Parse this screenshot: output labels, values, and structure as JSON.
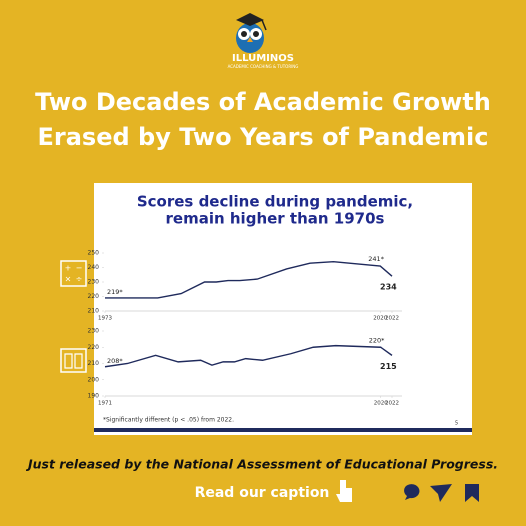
{
  "brand": {
    "name": "ILLUMINOS",
    "tagline": "ACADEMIC COACHING & TUTORING"
  },
  "headline": [
    "Two Decades of Academic Growth",
    "Erased by Two Years of Pandemic"
  ],
  "slide_title": [
    "Scores decline during pandemic,",
    "remain higher than 1970s"
  ],
  "chart_data": [
    {
      "type": "line",
      "color": "#1f2a5c",
      "x": [
        1973,
        1978,
        1982,
        1986,
        1990,
        1992,
        1994,
        1996,
        1999,
        2004,
        2008,
        2012,
        2020,
        2022
      ],
      "values": [
        219,
        219,
        219,
        222,
        230,
        230,
        231,
        231,
        232,
        239,
        243,
        244,
        241,
        234
      ],
      "value_labels": [
        "219*",
        null,
        null,
        null,
        null,
        null,
        null,
        null,
        null,
        null,
        null,
        null,
        "241*",
        "234"
      ],
      "xlim": [
        1973,
        2022
      ],
      "xticks": [
        1973,
        2020,
        2022
      ],
      "ylim": [
        210,
        250
      ],
      "yticks": [
        210,
        220,
        230,
        240,
        250
      ]
    },
    {
      "type": "line",
      "color": "#1f2a5c",
      "x": [
        1971,
        1975,
        1980,
        1984,
        1988,
        1990,
        1992,
        1994,
        1996,
        1999,
        2004,
        2008,
        2012,
        2020,
        2022
      ],
      "values": [
        208,
        210,
        215,
        211,
        212,
        209,
        211,
        211,
        213,
        212,
        216,
        220,
        221,
        220,
        215
      ],
      "value_labels": [
        "208*",
        null,
        null,
        null,
        null,
        null,
        null,
        null,
        null,
        null,
        null,
        null,
        null,
        "220*",
        "215"
      ],
      "xlim": [
        1971,
        2022
      ],
      "xticks": [
        1971,
        2020,
        2022
      ],
      "ylim": [
        190,
        230
      ],
      "yticks": [
        190,
        200,
        210,
        220,
        230
      ]
    }
  ],
  "footnote": "*Significantly different (p < .05) from 2022.",
  "page_number": "5",
  "caption": "Just released by the National Assessment of Educational Progress.",
  "cta": "Read our caption"
}
